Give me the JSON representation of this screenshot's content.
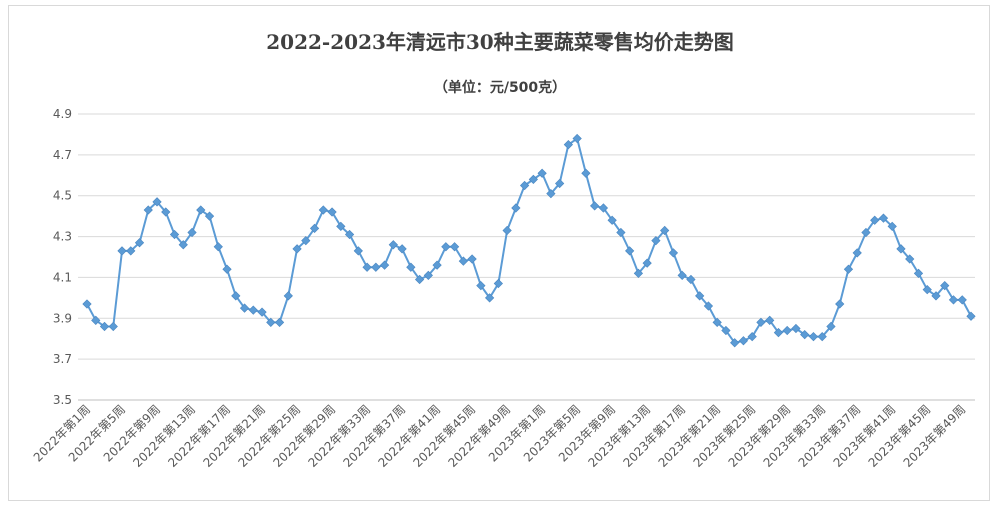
{
  "chart_data": {
    "type": "line",
    "title": "2022-2023年清远市30种主要蔬菜零售均价走势图",
    "subtitle": "（单位：元/500克）",
    "xlabel": "",
    "ylabel": "",
    "ylim": [
      3.5,
      4.9
    ],
    "yticks": [
      "3.5",
      "3.7",
      "3.9",
      "4.1",
      "4.3",
      "4.5",
      "4.7",
      "4.9"
    ],
    "grid": true,
    "legend": "none",
    "line_color": "#5b9bd5",
    "tick_labels": [
      "2022年第1周",
      "2022年第5周",
      "2022年第9周",
      "2022年第13周",
      "2022年第17周",
      "2022年第21周",
      "2022年第25周",
      "2022年第29周",
      "2022年第33周",
      "2022年第37周",
      "2022年第41周",
      "2022年第45周",
      "2022年第49周",
      "2023年第1周",
      "2023年第5周",
      "2023年第9周",
      "2023年第13周",
      "2023年第17周",
      "2023年第21周",
      "2023年第25周",
      "2023年第29周",
      "2023年第33周",
      "2023年第37周",
      "2023年第41周",
      "2023年第45周",
      "2023年第49周"
    ],
    "series": [
      {
        "values": [
          3.97,
          3.89,
          3.86,
          3.86,
          4.23,
          4.23,
          4.27,
          4.43,
          4.47,
          4.42,
          4.31,
          4.26,
          4.32,
          4.43,
          4.4,
          4.25,
          4.14,
          4.01,
          3.95,
          3.94,
          3.93,
          3.88,
          3.88,
          4.01,
          4.24,
          4.28,
          4.34,
          4.43,
          4.42,
          4.35,
          4.31,
          4.23,
          4.15,
          4.15,
          4.16,
          4.26,
          4.24,
          4.15,
          4.09,
          4.11,
          4.16,
          4.25,
          4.25,
          4.18,
          4.19,
          4.06,
          4.0,
          4.07,
          4.33,
          4.44,
          4.55,
          4.58,
          4.61,
          4.51,
          4.56,
          4.75,
          4.78,
          4.61,
          4.45,
          4.44,
          4.38,
          4.32,
          4.23,
          4.12,
          4.17,
          4.28,
          4.33,
          4.22,
          4.11,
          4.09,
          4.01,
          3.96,
          3.88,
          3.84,
          3.78,
          3.79,
          3.81,
          3.88,
          3.89,
          3.83,
          3.84,
          3.85,
          3.82,
          3.81,
          3.81,
          3.86,
          3.97,
          4.14,
          4.22,
          4.32,
          4.38,
          4.39,
          4.35,
          4.24,
          4.19,
          4.12,
          4.04,
          4.01,
          4.06,
          3.99,
          3.99,
          3.91
        ]
      }
    ]
  }
}
